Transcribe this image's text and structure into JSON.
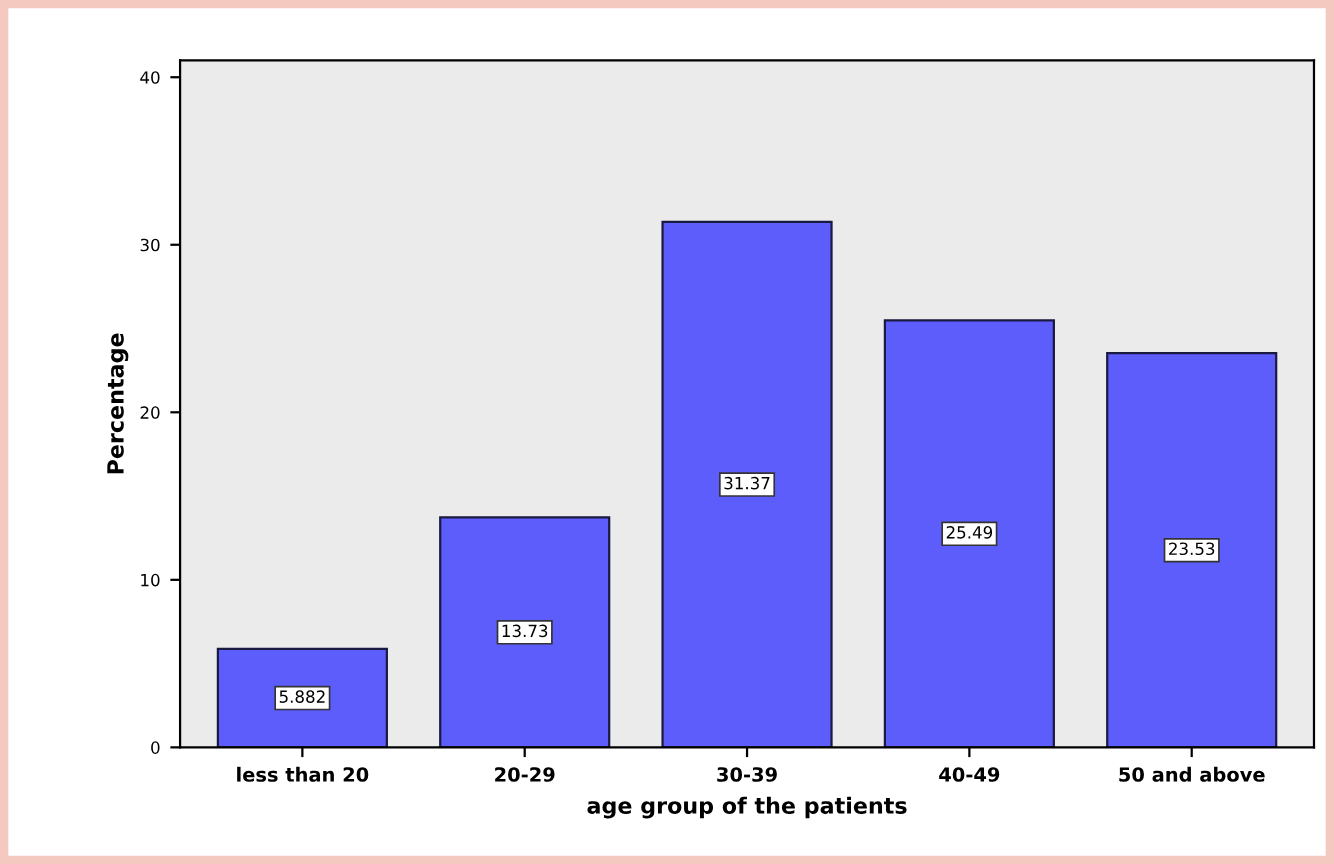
{
  "chart_data": {
    "type": "bar",
    "xlabel": "age group of the patients",
    "ylabel": "Percentage",
    "categories": [
      "less than 20",
      "20-29",
      "30-39",
      "40-49",
      "50 and above"
    ],
    "values": [
      5.882,
      13.73,
      31.37,
      25.49,
      23.53
    ],
    "color": "#5d5dfc",
    "ylim": [
      0,
      41
    ],
    "yticks": [
      0,
      10,
      20,
      30,
      40
    ],
    "data_labels": true,
    "grid": false,
    "legend": false
  }
}
